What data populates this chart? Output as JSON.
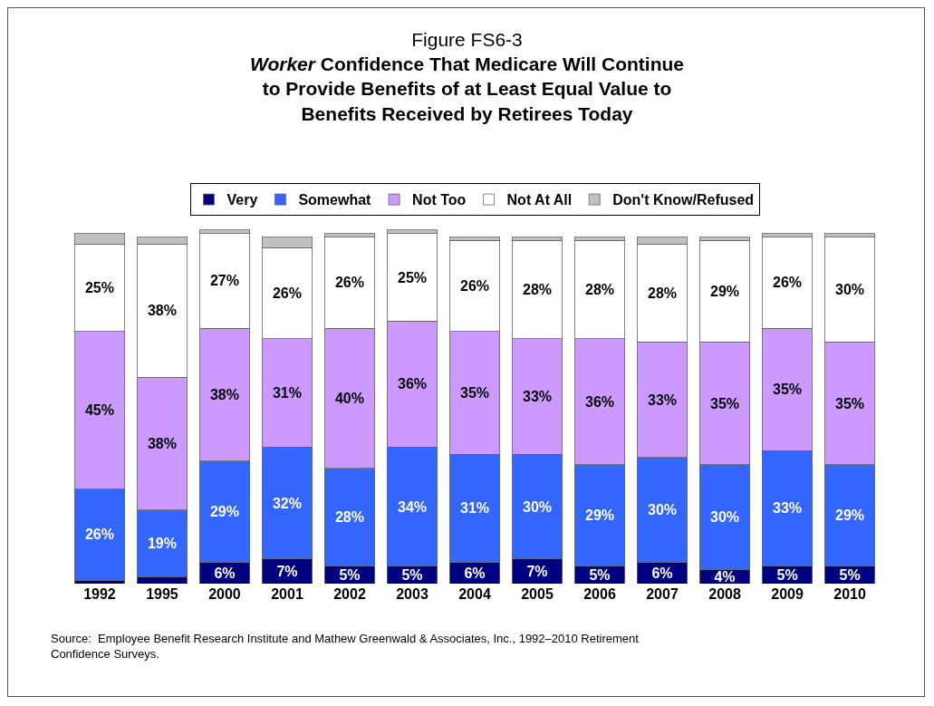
{
  "chart_data": {
    "type": "bar",
    "stacked": true,
    "title": "Figure FS6-3",
    "subtitle": "Worker Confidence That Medicare Will Continue to Provide Benefits of at Least Equal Value to Benefits Received by Retirees Today",
    "categories": [
      "1992",
      "1995",
      "2000",
      "2001",
      "2002",
      "2003",
      "2004",
      "2005",
      "2006",
      "2007",
      "2008",
      "2009",
      "2010"
    ],
    "series": [
      {
        "name": "Very",
        "color": "#000080",
        "values": [
          1,
          2,
          6,
          7,
          5,
          5,
          6,
          7,
          5,
          6,
          4,
          5,
          5
        ],
        "value_labels": [
          null,
          null,
          "6%",
          "7%",
          "5%",
          "5%",
          "6%",
          "7%",
          "5%",
          "6%",
          "4%",
          "5%",
          "5%"
        ]
      },
      {
        "name": "Somewhat",
        "color": "#3366ff",
        "values": [
          26,
          19,
          29,
          32,
          28,
          34,
          31,
          30,
          29,
          30,
          30,
          33,
          29
        ],
        "value_labels": [
          "26%",
          "19%",
          "29%",
          "32%",
          "28%",
          "34%",
          "31%",
          "30%",
          "29%",
          "30%",
          "30%",
          "33%",
          "29%"
        ]
      },
      {
        "name": "Not Too",
        "color": "#cc99ff",
        "values": [
          45,
          38,
          38,
          31,
          40,
          36,
          35,
          33,
          36,
          33,
          35,
          35,
          35
        ],
        "value_labels": [
          "45%",
          "38%",
          "38%",
          "31%",
          "40%",
          "36%",
          "35%",
          "33%",
          "36%",
          "33%",
          "35%",
          "35%",
          "35%"
        ]
      },
      {
        "name": "Not At All",
        "color": "#ffffff",
        "values": [
          25,
          38,
          27,
          26,
          26,
          25,
          26,
          28,
          28,
          28,
          29,
          26,
          30
        ],
        "value_labels": [
          "25%",
          "38%",
          "27%",
          "26%",
          "26%",
          "25%",
          "26%",
          "28%",
          "28%",
          "28%",
          "29%",
          "26%",
          "30%"
        ]
      },
      {
        "name": "Don't Know/Refused",
        "color": "#c0c0c0",
        "values": [
          3,
          2,
          1,
          3,
          1,
          1,
          1,
          1,
          1,
          2,
          1,
          1,
          1
        ]
      }
    ],
    "ylim": [
      0,
      102
    ],
    "tick_labels": "x",
    "grid": false,
    "legend": "top",
    "annotations": [
      "Source:  Employee Benefit Research Institute and Mathew Greenwald & Associates, Inc., 1992–2010 Retirement Confidence Surveys."
    ]
  }
}
